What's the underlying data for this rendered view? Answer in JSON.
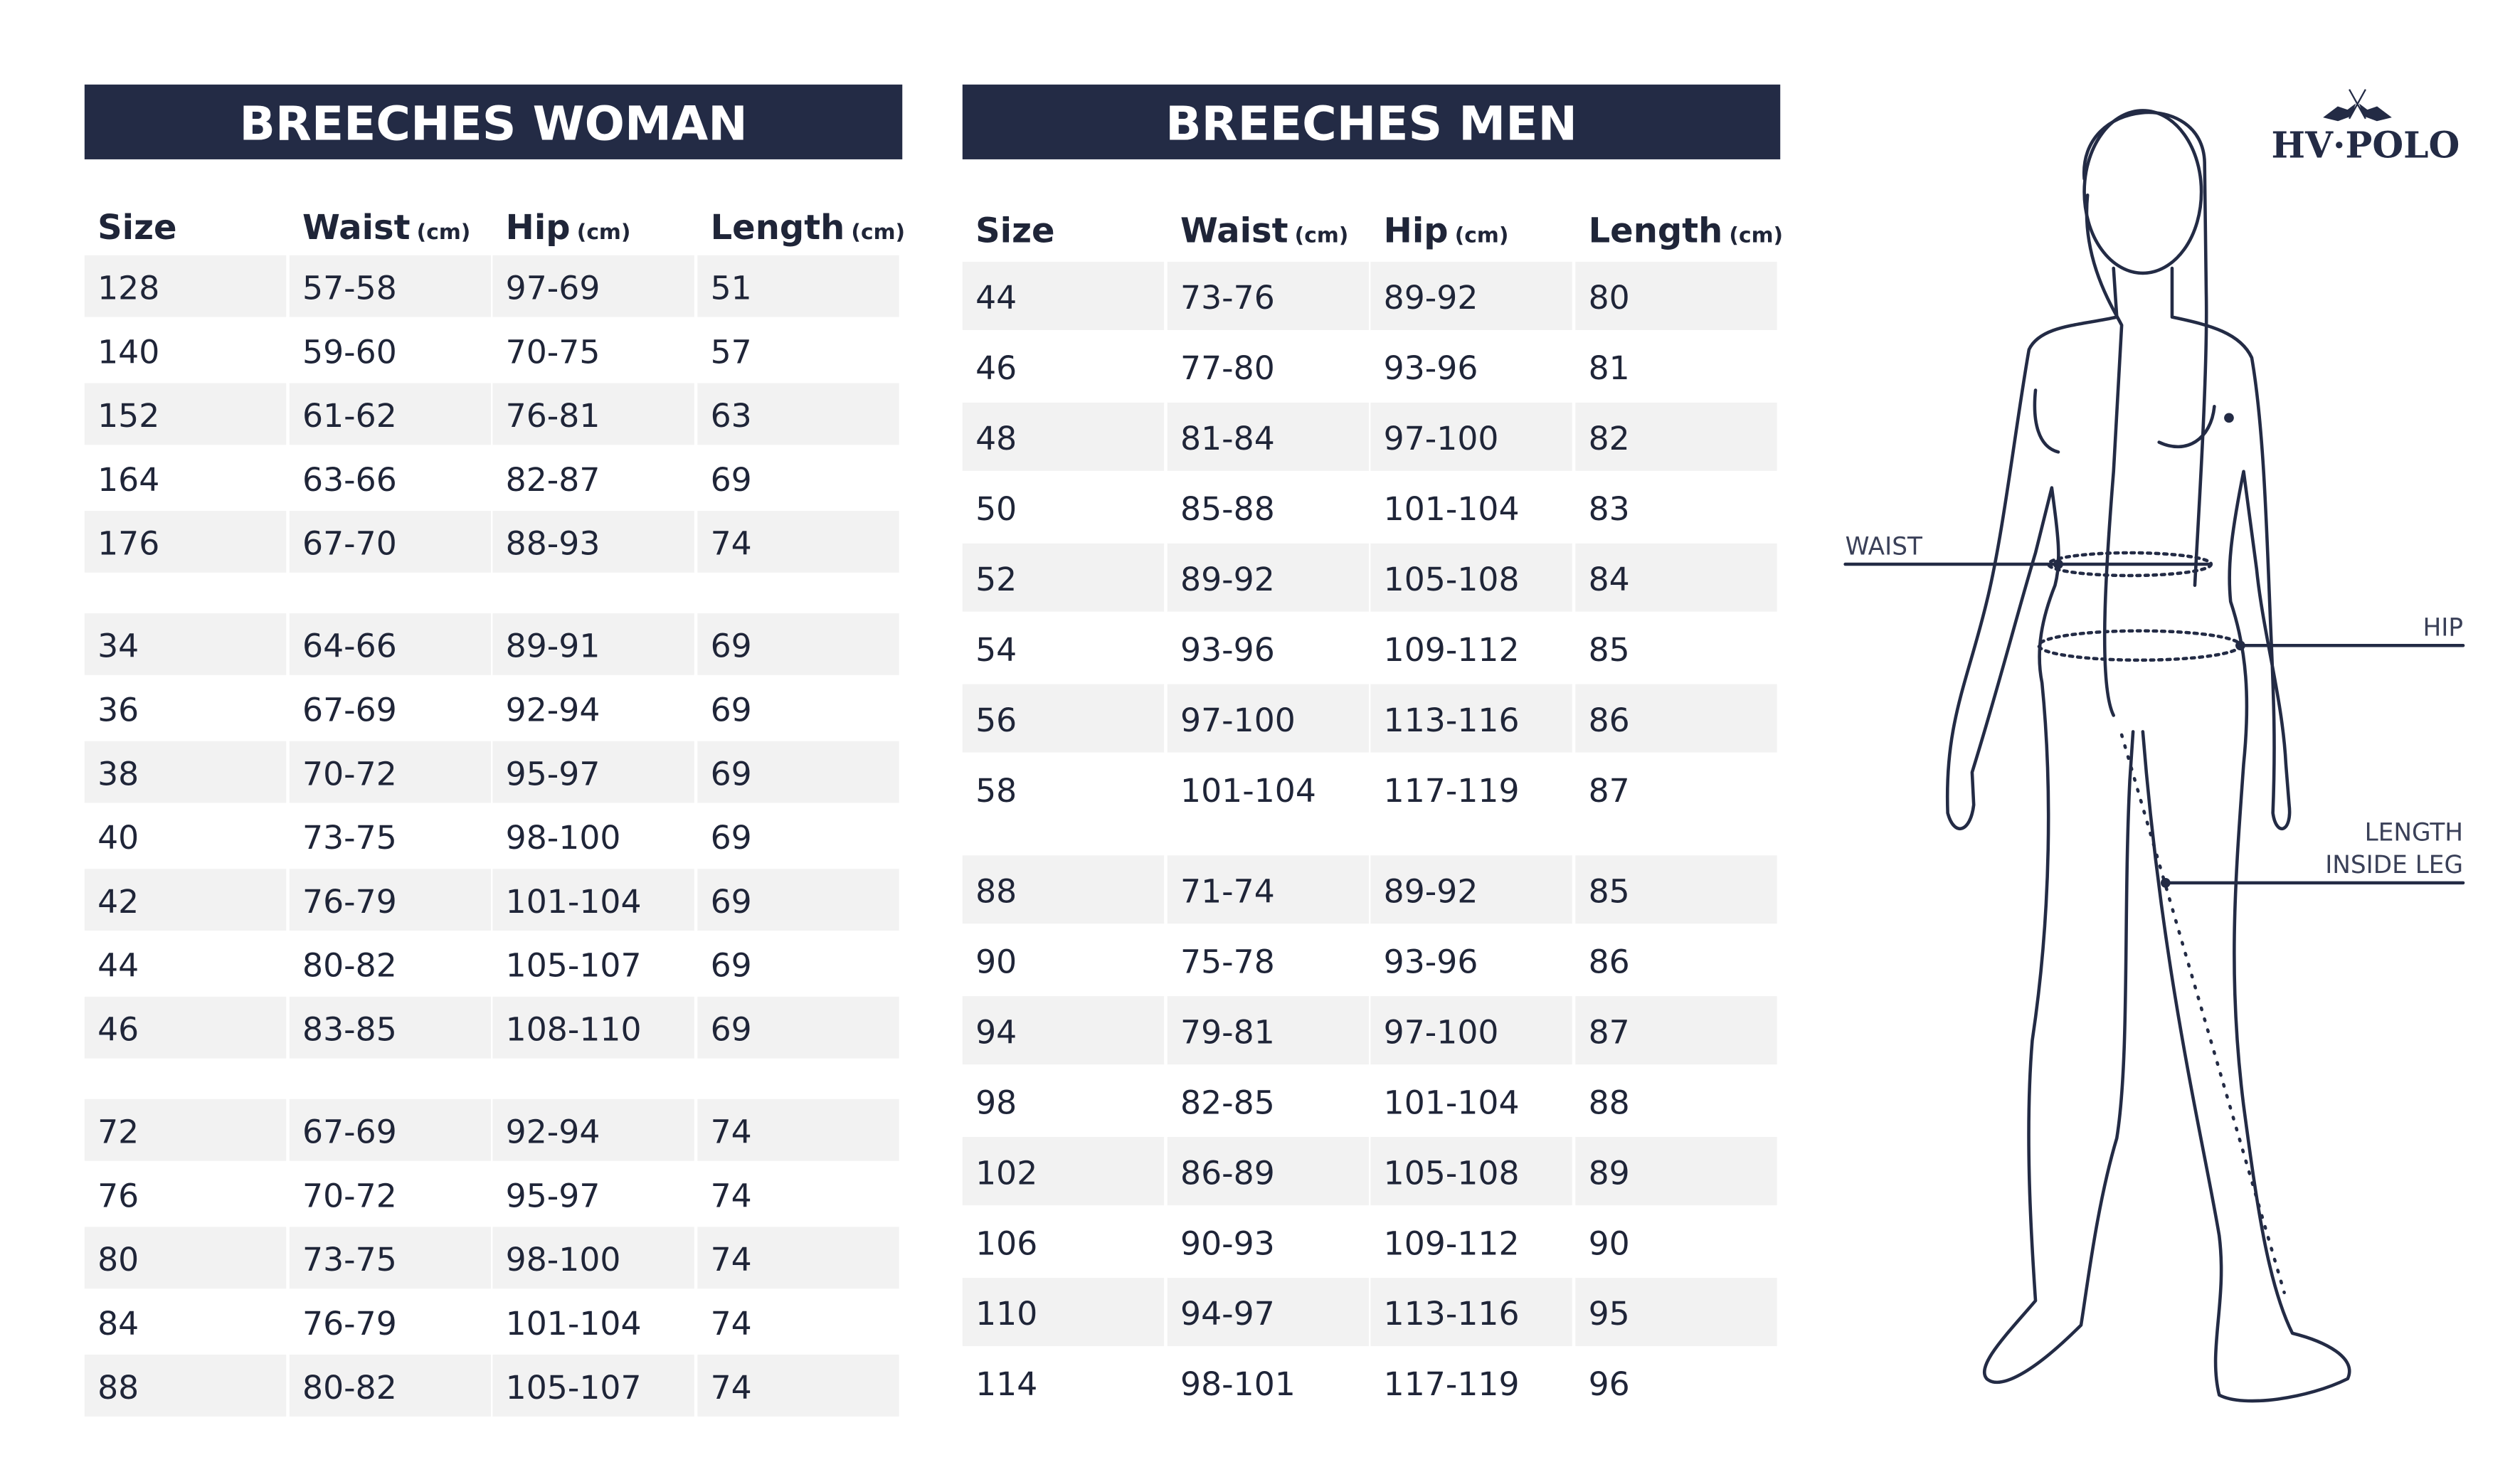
{
  "women": {
    "title": "BREECHES WOMAN",
    "header": [
      {
        "label": "Size"
      },
      {
        "label": "Waist",
        "unit": "(cm)"
      },
      {
        "label": "Hip",
        "unit": "(cm)"
      },
      {
        "label": "Length",
        "unit": "(cm)"
      }
    ],
    "groups": [
      [
        [
          "128",
          "57-58",
          "97-69",
          "51"
        ],
        [
          "140",
          "59-60",
          "70-75",
          "57"
        ],
        [
          "152",
          "61-62",
          "76-81",
          "63"
        ],
        [
          "164",
          "63-66",
          "82-87",
          "69"
        ],
        [
          "176",
          "67-70",
          "88-93",
          "74"
        ]
      ],
      [
        [
          "34",
          "64-66",
          "89-91",
          "69"
        ],
        [
          "36",
          "67-69",
          "92-94",
          "69"
        ],
        [
          "38",
          "70-72",
          "95-97",
          "69"
        ],
        [
          "40",
          "73-75",
          "98-100",
          "69"
        ],
        [
          "42",
          "76-79",
          "101-104",
          "69"
        ],
        [
          "44",
          "80-82",
          "105-107",
          "69"
        ],
        [
          "46",
          "83-85",
          "108-110",
          "69"
        ]
      ],
      [
        [
          "72",
          "67-69",
          "92-94",
          "74"
        ],
        [
          "76",
          "70-72",
          "95-97",
          "74"
        ],
        [
          "80",
          "73-75",
          "98-100",
          "74"
        ],
        [
          "84",
          "76-79",
          "101-104",
          "74"
        ],
        [
          "88",
          "80-82",
          "105-107",
          "74"
        ]
      ]
    ]
  },
  "men": {
    "title": "BREECHES MEN",
    "header": [
      {
        "label": "Size"
      },
      {
        "label": "Waist",
        "unit": "(cm)"
      },
      {
        "label": "Hip",
        "unit": "(cm)"
      },
      {
        "label": "Length",
        "unit": "(cm)"
      }
    ],
    "groups": [
      [
        [
          "44",
          "73-76",
          "89-92",
          "80"
        ],
        [
          "46",
          "77-80",
          "93-96",
          "81"
        ],
        [
          "48",
          "81-84",
          "97-100",
          "82"
        ],
        [
          "50",
          "85-88",
          "101-104",
          "83"
        ],
        [
          "52",
          "89-92",
          "105-108",
          "84"
        ],
        [
          "54",
          "93-96",
          "109-112",
          "85"
        ],
        [
          "56",
          "97-100",
          "113-116",
          "86"
        ],
        [
          "58",
          "101-104",
          "117-119",
          "87"
        ]
      ],
      [
        [
          "88",
          "71-74",
          "89-92",
          "85"
        ],
        [
          "90",
          "75-78",
          "93-96",
          "86"
        ],
        [
          "94",
          "79-81",
          "97-100",
          "87"
        ],
        [
          "98",
          "82-85",
          "101-104",
          "88"
        ],
        [
          "102",
          "86-89",
          "105-108",
          "89"
        ],
        [
          "106",
          "90-93",
          "109-112",
          "90"
        ],
        [
          "110",
          "94-97",
          "113-116",
          "95"
        ],
        [
          "114",
          "98-101",
          "117-119",
          "96"
        ]
      ]
    ]
  },
  "figure": {
    "waist": "WAIST",
    "hip": "HIP",
    "length": [
      "LENGTH",
      "INSIDE LEG"
    ]
  },
  "logo": "HV·POLO"
}
